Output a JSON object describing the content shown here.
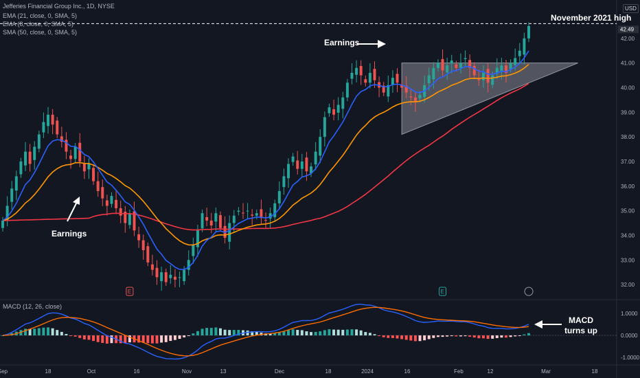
{
  "header": {
    "symbol_line": "Jefferies Financial Group Inc., 1D, NYSE",
    "ema21_label": "EMA (21, close, 0, SMA, 5)",
    "ema8_label": "EMA (8, close, 0, SMA, 5)",
    "sma50_label": "SMA (50, close, 0, SMA, 5)",
    "currency": "USD"
  },
  "annotations": {
    "earnings_left": "Earnings",
    "earnings_right": "Earnings",
    "nov_high": "November 2021 high",
    "macd_line1": "MACD",
    "macd_line2": "turns up"
  },
  "macd_panel": {
    "label": "MACD (12, 26, close)"
  },
  "colors": {
    "background": "#131722",
    "up_candle": "#26a69a",
    "down_candle": "#ef5350",
    "ema8": "#2962ff",
    "ema21": "#ff9800",
    "sma50": "#f23645",
    "macd_line": "#2962ff",
    "signal_line": "#ff6d00"
  },
  "chart_data": {
    "type": "candlestick",
    "y_ticks": [
      "42.00",
      "41.00",
      "40.00",
      "39.00",
      "38.00",
      "37.00",
      "36.00",
      "35.00",
      "34.00",
      "33.00",
      "32.00"
    ],
    "x_ticks": [
      "Sep",
      "18",
      "Oct",
      "16",
      "Nov",
      "13",
      "Dec",
      "18",
      "2024",
      "16",
      "Feb",
      "12",
      "Mar",
      "18"
    ],
    "last_price": "42.49",
    "macd_ticks": [
      "1.0000",
      "0.0000",
      "-1.0000"
    ],
    "ylim": [
      31.5,
      43.0
    ],
    "close": [
      34.6,
      35.2,
      35.9,
      36.4,
      37.0,
      37.4,
      36.9,
      37.6,
      38.1,
      38.6,
      38.9,
      38.5,
      38.1,
      37.8,
      37.4,
      37.1,
      37.6,
      37.0,
      36.6,
      36.9,
      36.2,
      35.8,
      35.5,
      35.2,
      35.6,
      35.1,
      34.8,
      34.5,
      34.9,
      34.2,
      33.8,
      33.4,
      32.9,
      32.6,
      32.3,
      32.5,
      32.1,
      32.4,
      32.2,
      32.3,
      32.6,
      33.0,
      33.6,
      34.2,
      34.9,
      34.6,
      34.4,
      34.9,
      34.3,
      33.9,
      34.5,
      34.8,
      35.0,
      34.9,
      35.0,
      34.8,
      34.9,
      34.7,
      34.6,
      34.9,
      35.3,
      35.8,
      36.4,
      36.9,
      37.2,
      36.7,
      37.0,
      36.6,
      36.8,
      37.4,
      38.0,
      38.8,
      39.2,
      38.9,
      39.3,
      39.6,
      40.2,
      40.6,
      40.8,
      40.5,
      40.2,
      40.6,
      40.3,
      40.0,
      39.8,
      40.1,
      40.4,
      40.2,
      40.0,
      39.8,
      39.6,
      39.4,
      39.7,
      40.1,
      40.5,
      40.8,
      41.0,
      40.7,
      40.9,
      41.1,
      40.8,
      41.0,
      41.2,
      40.8,
      40.5,
      40.3,
      40.6,
      40.2,
      40.5,
      40.8,
      40.9,
      40.6,
      41.0,
      41.2,
      41.5,
      42.0,
      42.5
    ],
    "moving_averages": [
      {
        "name": "EMA 8",
        "color": "#2962ff"
      },
      {
        "name": "EMA 21",
        "color": "#ff9800"
      },
      {
        "name": "SMA 50",
        "color": "#f23645"
      }
    ],
    "earnings_markers": [
      "E",
      "E"
    ]
  }
}
